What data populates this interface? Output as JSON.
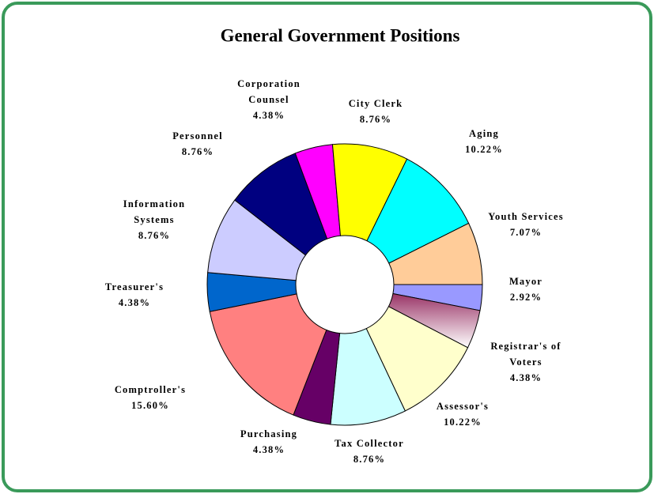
{
  "chart_data": {
    "type": "donut",
    "title": "General Government Positions",
    "categories": [
      "Mayor",
      "Registrar's of Voters",
      "Assessor's",
      "Tax Collector",
      "Purchasing",
      "Comptroller's",
      "Treasurer's",
      "Information Systems",
      "Personnel",
      "Corporation Counsel",
      "City Clerk",
      "Aging",
      "Youth Services"
    ],
    "values": [
      2.92,
      4.38,
      10.22,
      8.76,
      4.38,
      15.6,
      4.38,
      8.76,
      8.76,
      4.38,
      8.76,
      10.22,
      7.07
    ],
    "value_labels": [
      "2.92%",
      "4.38%",
      "10.22%",
      "8.76%",
      "4.38%",
      "15.60%",
      "4.38%",
      "8.76%",
      "8.76%",
      "4.38%",
      "8.76%",
      "10.22%",
      "7.07%"
    ],
    "colors": [
      "#9999ff",
      "#993366",
      "#ffffcc",
      "#ccffff",
      "#660066",
      "#ff8080",
      "#0066cc",
      "#ccccff",
      "#000080",
      "#ff00ff",
      "#ffff00",
      "#00ffff",
      "#ffcc99"
    ]
  }
}
